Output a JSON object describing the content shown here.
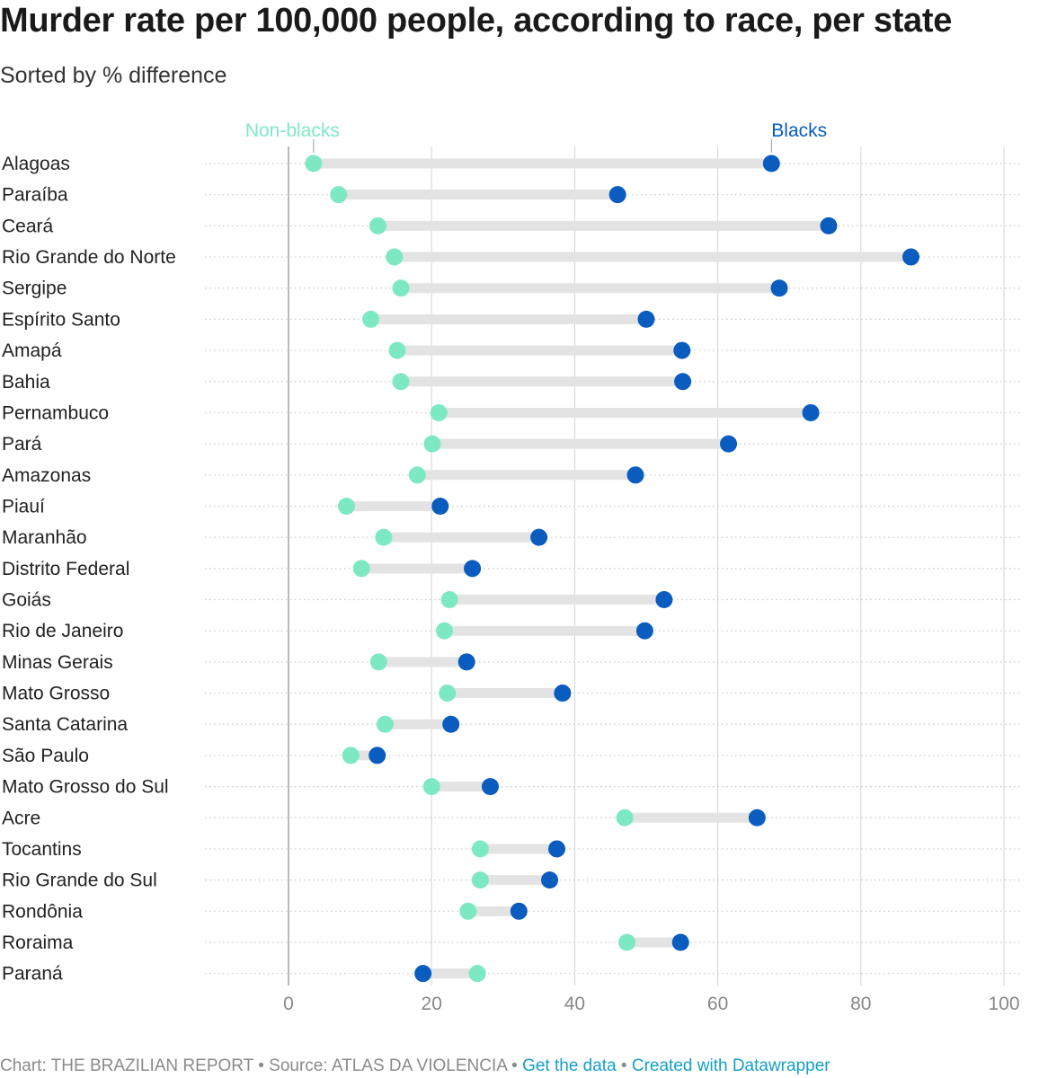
{
  "header": {
    "title": "Murder rate per 100,000 people, according to race, per state",
    "subtitle": "Sorted by % difference"
  },
  "colors": {
    "non_blacks": "#7de9c2",
    "blacks": "#0a5cbf",
    "range_bar": "#e3e3e3",
    "gridline": "#d4d4d4",
    "axis_line": "#a8a8a8",
    "link": "#15a0c8"
  },
  "chart_data": {
    "type": "range_dot",
    "title": "Murder rate per 100,000 people, according to race, per state",
    "subtitle": "Sorted by % difference",
    "xlim": [
      0,
      100
    ],
    "x_ticks": [
      0,
      20,
      40,
      60,
      80,
      100
    ],
    "grid": true,
    "legend_placement": "top, labels above first row",
    "series": [
      {
        "name": "Non-blacks",
        "key": "non_blacks"
      },
      {
        "name": "Blacks",
        "key": "blacks"
      }
    ],
    "rows": [
      {
        "state": "Alagoas",
        "non_blacks": 3.5,
        "blacks": 67.5
      },
      {
        "state": "Paraíba",
        "non_blacks": 7.0,
        "blacks": 46.0
      },
      {
        "state": "Ceará",
        "non_blacks": 12.5,
        "blacks": 75.5
      },
      {
        "state": "Rio Grande do Norte",
        "non_blacks": 14.8,
        "blacks": 87.0
      },
      {
        "state": "Sergipe",
        "non_blacks": 15.7,
        "blacks": 68.6
      },
      {
        "state": "Espírito Santo",
        "non_blacks": 11.5,
        "blacks": 50.0
      },
      {
        "state": "Amapá",
        "non_blacks": 15.2,
        "blacks": 55.0
      },
      {
        "state": "Bahia",
        "non_blacks": 15.7,
        "blacks": 55.1
      },
      {
        "state": "Pernambuco",
        "non_blacks": 21.0,
        "blacks": 73.0
      },
      {
        "state": "Pará",
        "non_blacks": 20.1,
        "blacks": 61.5
      },
      {
        "state": "Amazonas",
        "non_blacks": 18.0,
        "blacks": 48.5
      },
      {
        "state": "Piauí",
        "non_blacks": 8.1,
        "blacks": 21.2
      },
      {
        "state": "Maranhão",
        "non_blacks": 13.3,
        "blacks": 35.0
      },
      {
        "state": "Distrito Federal",
        "non_blacks": 10.2,
        "blacks": 25.7
      },
      {
        "state": "Goiás",
        "non_blacks": 22.5,
        "blacks": 52.5
      },
      {
        "state": "Rio de Janeiro",
        "non_blacks": 21.8,
        "blacks": 49.8
      },
      {
        "state": "Minas Gerais",
        "non_blacks": 12.6,
        "blacks": 24.9
      },
      {
        "state": "Mato Grosso",
        "non_blacks": 22.2,
        "blacks": 38.3
      },
      {
        "state": "Santa Catarina",
        "non_blacks": 13.5,
        "blacks": 22.7
      },
      {
        "state": "São Paulo",
        "non_blacks": 8.7,
        "blacks": 12.4
      },
      {
        "state": "Mato Grosso do Sul",
        "non_blacks": 20.0,
        "blacks": 28.2
      },
      {
        "state": "Acre",
        "non_blacks": 47.0,
        "blacks": 65.5
      },
      {
        "state": "Tocantins",
        "non_blacks": 26.8,
        "blacks": 37.5
      },
      {
        "state": "Rio Grande do Sul",
        "non_blacks": 26.8,
        "blacks": 36.5
      },
      {
        "state": "Rondônia",
        "non_blacks": 25.1,
        "blacks": 32.2
      },
      {
        "state": "Roraima",
        "non_blacks": 47.3,
        "blacks": 54.8
      },
      {
        "state": "Paraná",
        "non_blacks": 26.4,
        "blacks": 18.8
      }
    ]
  },
  "footer": {
    "credit": "Chart: THE BRAZILIAN REPORT",
    "separator": " • ",
    "source": "Source: ATLAS DA VIOLENCIA",
    "get_data": "Get the data",
    "created_with": "Created with Datawrapper"
  }
}
